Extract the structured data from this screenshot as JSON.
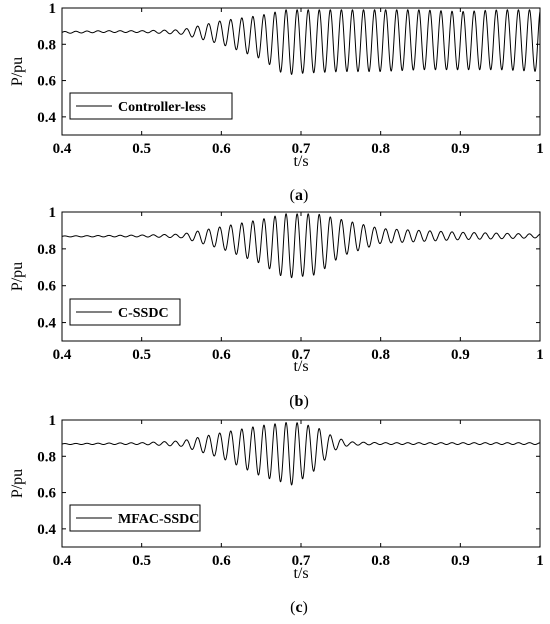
{
  "chart_data": [
    {
      "type": "line",
      "caption": "(a)",
      "caption_prefix": "(",
      "caption_letter": "a",
      "caption_suffix": ")",
      "xlabel": "t/s",
      "ylabel": "P/pu",
      "xlim": [
        0.4,
        1.0
      ],
      "ylim": [
        0.3,
        1.0
      ],
      "xticks": [
        "0.4",
        "0.5",
        "0.6",
        "0.7",
        "0.8",
        "0.9",
        "1"
      ],
      "yticks": [
        "0.4",
        "0.6",
        "0.8",
        "1"
      ],
      "legend": "Controller-less",
      "legend_position": "bottom-left",
      "series": [
        {
          "name": "Controller-less",
          "frequency_hz": 72,
          "envelope_t": [
            0.4,
            0.45,
            0.5,
            0.55,
            0.6,
            0.65,
            0.68,
            0.7,
            0.75,
            0.8,
            0.85,
            0.9,
            0.95,
            1.0
          ],
          "envelope_upper": [
            0.87,
            0.875,
            0.875,
            0.88,
            0.93,
            0.96,
            0.99,
            0.99,
            0.99,
            0.99,
            0.99,
            0.98,
            0.99,
            0.99
          ],
          "envelope_lower": [
            0.86,
            0.865,
            0.865,
            0.855,
            0.8,
            0.72,
            0.63,
            0.64,
            0.65,
            0.65,
            0.66,
            0.66,
            0.66,
            0.65
          ]
        }
      ]
    },
    {
      "type": "line",
      "caption": "(b)",
      "caption_prefix": "(",
      "caption_letter": "b",
      "caption_suffix": ")",
      "xlabel": "t/s",
      "ylabel": "P/pu",
      "xlim": [
        0.4,
        1.0
      ],
      "ylim": [
        0.3,
        1.0
      ],
      "xticks": [
        "0.4",
        "0.5",
        "0.6",
        "0.7",
        "0.8",
        "0.9",
        "1"
      ],
      "yticks": [
        "0.4",
        "0.6",
        "0.8",
        "1"
      ],
      "legend": "C-SSDC",
      "legend_position": "bottom-left",
      "series": [
        {
          "name": "C-SSDC",
          "frequency_hz": 72,
          "envelope_t": [
            0.4,
            0.5,
            0.55,
            0.6,
            0.65,
            0.68,
            0.72,
            0.75,
            0.8,
            0.85,
            0.9,
            0.95,
            1.0
          ],
          "envelope_upper": [
            0.87,
            0.875,
            0.88,
            0.92,
            0.96,
            0.99,
            0.99,
            0.96,
            0.91,
            0.9,
            0.89,
            0.885,
            0.88
          ],
          "envelope_lower": [
            0.865,
            0.865,
            0.86,
            0.8,
            0.72,
            0.64,
            0.66,
            0.76,
            0.83,
            0.84,
            0.85,
            0.855,
            0.86
          ]
        }
      ]
    },
    {
      "type": "line",
      "caption": "(c)",
      "caption_prefix": "(",
      "caption_letter": "c",
      "caption_suffix": ")",
      "xlabel": "t/s",
      "ylabel": "P/pu",
      "xlim": [
        0.4,
        1.0
      ],
      "ylim": [
        0.3,
        1.0
      ],
      "xticks": [
        "0.4",
        "0.5",
        "0.6",
        "0.7",
        "0.8",
        "0.9",
        "1"
      ],
      "yticks": [
        "0.4",
        "0.6",
        "0.8",
        "1"
      ],
      "legend": "MFAC-SSDC",
      "legend_position": "bottom-left",
      "series": [
        {
          "name": "MFAC-SSDC",
          "frequency_hz": 72,
          "envelope_t": [
            0.4,
            0.5,
            0.55,
            0.6,
            0.65,
            0.69,
            0.72,
            0.74,
            0.76,
            0.8,
            0.9,
            1.0
          ],
          "envelope_upper": [
            0.87,
            0.875,
            0.885,
            0.93,
            0.97,
            0.99,
            0.96,
            0.91,
            0.88,
            0.875,
            0.875,
            0.875
          ],
          "envelope_lower": [
            0.865,
            0.865,
            0.855,
            0.79,
            0.69,
            0.64,
            0.73,
            0.83,
            0.86,
            0.865,
            0.865,
            0.865
          ]
        }
      ]
    }
  ]
}
